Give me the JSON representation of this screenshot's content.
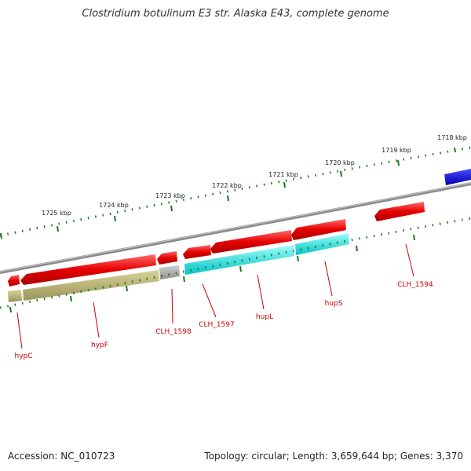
{
  "title": "Clostridium botulinum E3 str. Alaska E43, complete genome",
  "footer": {
    "accession": "Accession: NC_010723",
    "summary": "Topology: circular; Length: 3,659,644 bp; Genes: 3,370"
  },
  "kbp_ticks": [
    "1718 kbp",
    "1719 kbp",
    "1720 kbp",
    "1721 kbp",
    "1722 kbp",
    "1723 kbp",
    "1724 kbp",
    "1725 kbp"
  ],
  "genes": [
    {
      "label": "hypC"
    },
    {
      "label": "hypF"
    },
    {
      "label": "CLH_1598"
    },
    {
      "label": "CLH_1597"
    },
    {
      "label": "hupL"
    },
    {
      "label": "hupS"
    },
    {
      "label": "CLH_1594"
    }
  ],
  "colors": {
    "cds": "#e00000",
    "gene_olive": "#b8b070",
    "gene_gray": "#aaaaaa",
    "gene_cyan": "#00e0e0",
    "gene_blue": "#0000dd",
    "backbone": "#808080",
    "ticks": "#1a7a1a",
    "label": "#cc0000"
  }
}
